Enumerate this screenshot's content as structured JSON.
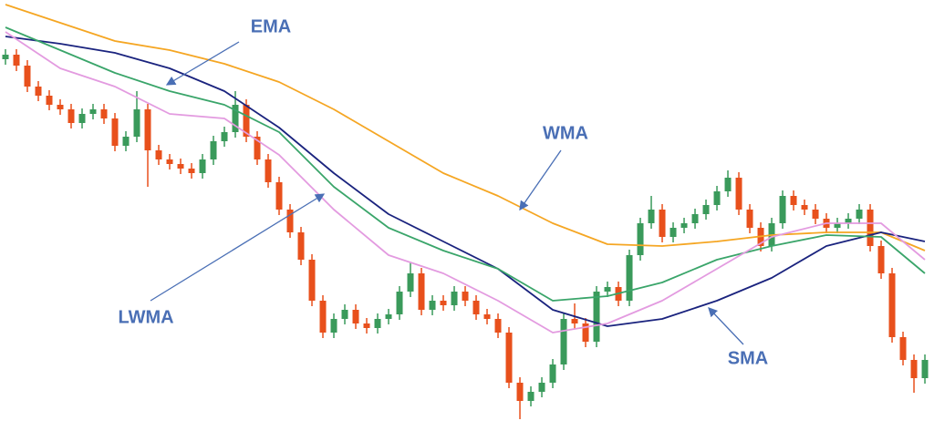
{
  "chart_data": {
    "type": "candlestick",
    "xlim": [
      -0.5,
      84.83
    ],
    "ylim": [
      0,
      473
    ],
    "up_color": "#3a9a5b",
    "down_color": "#e8501c",
    "open": [
      408,
      413,
      401,
      378,
      368,
      358,
      353,
      338,
      348,
      353,
      343,
      313,
      323,
      353,
      308,
      298,
      293,
      288,
      283,
      298,
      318,
      328,
      358,
      323,
      298,
      273,
      243,
      218,
      188,
      143,
      108,
      123,
      133,
      118,
      113,
      123,
      128,
      153,
      173,
      133,
      143,
      138,
      153,
      143,
      128,
      123,
      108,
      53,
      33,
      43,
      53,
      73,
      123,
      118,
      98,
      153,
      158,
      143,
      193,
      228,
      243,
      213,
      223,
      228,
      238,
      248,
      263,
      278,
      243,
      223,
      203,
      228,
      258,
      248,
      243,
      233,
      223,
      228,
      233,
      243,
      203,
      173,
      103,
      78,
      58
    ],
    "high": [
      419,
      419,
      407,
      384,
      374,
      364,
      359,
      354,
      359,
      359,
      349,
      329,
      373,
      359,
      314,
      304,
      299,
      294,
      304,
      324,
      334,
      373,
      364,
      329,
      304,
      279,
      249,
      224,
      194,
      149,
      129,
      139,
      139,
      124,
      129,
      134,
      159,
      185,
      179,
      149,
      149,
      159,
      159,
      149,
      134,
      129,
      114,
      59,
      49,
      59,
      79,
      129,
      140,
      124,
      159,
      164,
      164,
      199,
      234,
      258,
      249,
      229,
      234,
      244,
      254,
      269,
      286,
      284,
      249,
      229,
      234,
      264,
      264,
      254,
      249,
      239,
      234,
      239,
      249,
      249,
      209,
      179,
      109,
      84,
      84
    ],
    "low": [
      402,
      395,
      372,
      362,
      352,
      347,
      332,
      332,
      342,
      337,
      307,
      307,
      317,
      268,
      292,
      287,
      282,
      277,
      277,
      292,
      312,
      322,
      317,
      292,
      267,
      237,
      212,
      182,
      137,
      102,
      102,
      117,
      112,
      107,
      107,
      117,
      122,
      147,
      127,
      127,
      132,
      132,
      137,
      122,
      117,
      102,
      47,
      13,
      27,
      37,
      47,
      67,
      112,
      92,
      92,
      147,
      137,
      137,
      187,
      222,
      207,
      207,
      217,
      222,
      232,
      242,
      257,
      237,
      217,
      197,
      197,
      222,
      242,
      237,
      227,
      217,
      217,
      222,
      227,
      197,
      167,
      97,
      72,
      42,
      52
    ],
    "close": [
      413,
      401,
      378,
      368,
      358,
      353,
      338,
      348,
      353,
      343,
      313,
      323,
      353,
      308,
      298,
      293,
      288,
      283,
      298,
      318,
      328,
      358,
      323,
      298,
      273,
      243,
      218,
      188,
      143,
      108,
      123,
      133,
      118,
      113,
      123,
      128,
      153,
      173,
      133,
      143,
      138,
      153,
      143,
      128,
      123,
      108,
      53,
      33,
      43,
      53,
      73,
      123,
      118,
      98,
      153,
      158,
      143,
      193,
      228,
      243,
      213,
      223,
      228,
      238,
      248,
      263,
      278,
      243,
      223,
      203,
      228,
      258,
      248,
      243,
      233,
      223,
      228,
      233,
      243,
      203,
      173,
      103,
      78,
      58,
      78
    ],
    "series": [
      {
        "name": "WMA",
        "color": "#f5a623",
        "x": [
          0,
          5,
          10,
          15,
          20,
          25,
          30,
          35,
          40,
          45,
          50,
          55,
          60,
          65,
          70,
          75,
          80,
          84
        ],
        "values": [
          468,
          448,
          428,
          418,
          403,
          383,
          353,
          318,
          283,
          258,
          228,
          205,
          203,
          208,
          215,
          218,
          218,
          198
        ]
      },
      {
        "name": "SMA",
        "color": "#1a237e",
        "x": [
          0,
          5,
          10,
          15,
          20,
          25,
          30,
          35,
          40,
          45,
          50,
          55,
          60,
          65,
          70,
          75,
          80,
          84
        ],
        "values": [
          433,
          425,
          415,
          398,
          373,
          333,
          283,
          238,
          208,
          178,
          133,
          115,
          123,
          143,
          168,
          203,
          218,
          208
        ]
      },
      {
        "name": "EMA",
        "color": "#3aa56a",
        "x": [
          0,
          5,
          10,
          15,
          20,
          25,
          30,
          35,
          40,
          45,
          50,
          55,
          60,
          65,
          70,
          75,
          80,
          84
        ],
        "values": [
          443,
          418,
          393,
          373,
          358,
          328,
          268,
          223,
          198,
          178,
          143,
          148,
          163,
          188,
          203,
          215,
          213,
          173
        ]
      },
      {
        "name": "LWMA",
        "color": "#e39be0",
        "x": [
          0,
          5,
          10,
          15,
          20,
          25,
          30,
          35,
          40,
          45,
          50,
          55,
          60,
          65,
          70,
          75,
          80,
          84
        ],
        "values": [
          438,
          398,
          378,
          348,
          343,
          303,
          243,
          193,
          173,
          143,
          108,
          118,
          143,
          178,
          213,
          228,
          228,
          188
        ]
      }
    ]
  }
}
